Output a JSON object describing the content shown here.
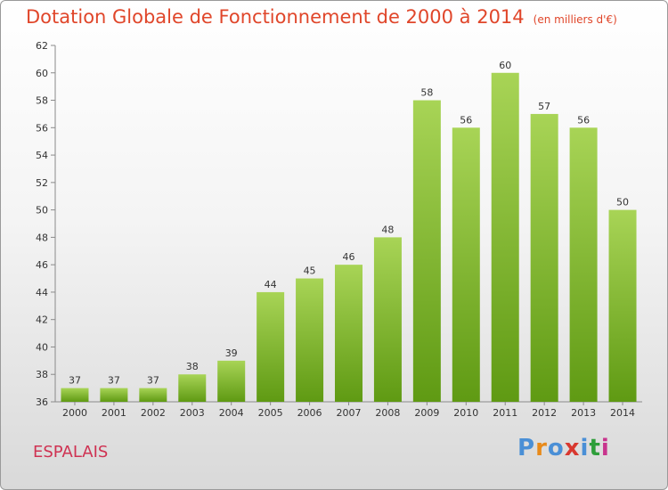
{
  "title": "Dotation Globale de Fonctionnement de 2000 à 2014",
  "unit_label": "(en milliers d'€)",
  "commune": "ESPALAIS",
  "logo": {
    "text": "Proxiti",
    "letter_colors": [
      "#4a8fd6",
      "#e88a1a",
      "#4a8fd6",
      "#d8382f",
      "#4a8fd6",
      "#2e9e3a",
      "#c8348d"
    ]
  },
  "colors": {
    "bar_top": "#a8d456",
    "bar_bottom": "#5f9a13",
    "title": "#e0462a",
    "commune": "#cf3252"
  },
  "chart_data": {
    "type": "bar",
    "title": "Dotation Globale de Fonctionnement de 2000 à 2014",
    "subtitle": "(en milliers d'€)",
    "categories": [
      "2000",
      "2001",
      "2002",
      "2003",
      "2004",
      "2005",
      "2006",
      "2007",
      "2008",
      "2009",
      "2010",
      "2011",
      "2012",
      "2013",
      "2014"
    ],
    "values": [
      37,
      37,
      37,
      38,
      39,
      44,
      45,
      46,
      48,
      58,
      56,
      60,
      57,
      56,
      50
    ],
    "ylim": [
      36,
      62
    ],
    "yticks": [
      36,
      38,
      40,
      42,
      44,
      46,
      48,
      50,
      52,
      54,
      56,
      58,
      60,
      62
    ],
    "grid": false,
    "data_labels": true
  }
}
